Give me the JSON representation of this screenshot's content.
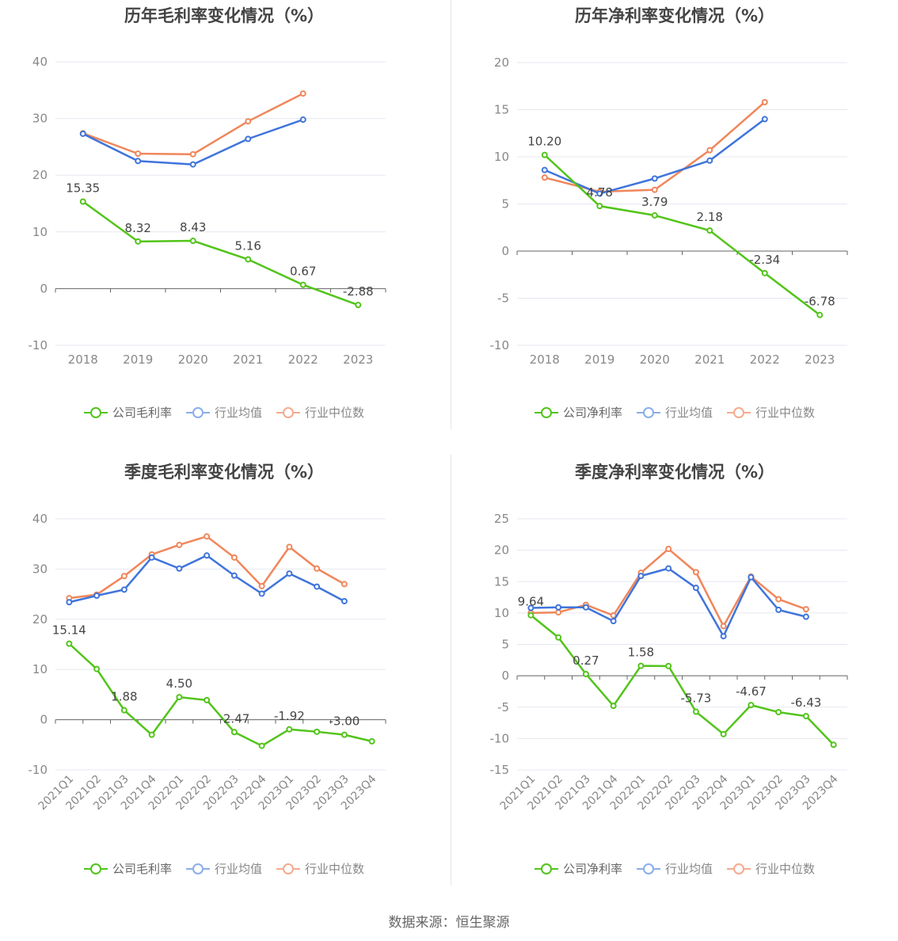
{
  "source_label": "数据来源：恒生聚源",
  "colors": {
    "company": "#52c41a",
    "avg": "#3f74db",
    "median": "#f0865a",
    "grid": "#e6e8f0",
    "axis": "#666666",
    "text": "#666666"
  },
  "chart_data": [
    {
      "id": "annual_gross",
      "type": "line",
      "title": "历年毛利率变化情况（%）",
      "categories": [
        "2018",
        "2019",
        "2020",
        "2021",
        "2022",
        "2023"
      ],
      "yticks": [
        -10,
        0,
        10,
        20,
        30,
        40
      ],
      "ylim": [
        -10,
        40
      ],
      "grid": true,
      "legend_position": "bottom",
      "series": [
        {
          "key": "company",
          "name": "公司毛利率",
          "values": [
            15.35,
            8.32,
            8.43,
            5.16,
            0.67,
            -2.88
          ],
          "labels": [
            "15.35",
            "8.32",
            "8.43",
            "5.16",
            "0.67",
            "-2.88"
          ]
        },
        {
          "key": "avg",
          "name": "行业均值",
          "values": [
            27.3,
            22.5,
            21.9,
            26.4,
            29.8,
            null
          ]
        },
        {
          "key": "median",
          "name": "行业中位数",
          "values": [
            27.4,
            23.8,
            23.7,
            29.5,
            34.4,
            null
          ]
        }
      ]
    },
    {
      "id": "annual_net",
      "type": "line",
      "title": "历年净利率变化情况（%）",
      "categories": [
        "2018",
        "2019",
        "2020",
        "2021",
        "2022",
        "2023"
      ],
      "yticks": [
        -10,
        -5,
        0,
        5,
        10,
        15,
        20
      ],
      "ylim": [
        -10,
        20
      ],
      "grid": true,
      "legend_position": "bottom",
      "series": [
        {
          "key": "company",
          "name": "公司净利率",
          "values": [
            10.2,
            4.78,
            3.79,
            2.18,
            -2.34,
            -6.78
          ],
          "labels": [
            "10.20",
            "4.78",
            "3.79",
            "2.18",
            "-2.34",
            "-6.78"
          ]
        },
        {
          "key": "avg",
          "name": "行业均值",
          "values": [
            8.6,
            6.1,
            7.7,
            9.6,
            14.0,
            null
          ]
        },
        {
          "key": "median",
          "name": "行业中位数",
          "values": [
            7.8,
            6.3,
            6.5,
            10.7,
            15.8,
            null
          ]
        }
      ]
    },
    {
      "id": "quarterly_gross",
      "type": "line",
      "title": "季度毛利率变化情况（%）",
      "categories": [
        "2021Q1",
        "2021Q2",
        "2021Q3",
        "2021Q4",
        "2022Q1",
        "2022Q2",
        "2022Q3",
        "2022Q4",
        "2023Q1",
        "2023Q2",
        "2023Q3",
        "2023Q4"
      ],
      "yticks": [
        -10,
        0,
        10,
        20,
        30,
        40
      ],
      "ylim": [
        -10,
        40
      ],
      "grid": true,
      "legend_position": "bottom",
      "series": [
        {
          "key": "company",
          "name": "公司毛利率",
          "values": [
            15.14,
            10.1,
            1.88,
            -3.0,
            4.5,
            3.9,
            -2.47,
            -5.2,
            -1.92,
            -2.4,
            -3.0,
            -4.3
          ],
          "labels": [
            "15.14",
            null,
            "1.88",
            null,
            "4.50",
            null,
            "-2.47",
            null,
            "-1.92",
            null,
            "-3.00",
            null
          ]
        },
        {
          "key": "avg",
          "name": "行业均值",
          "values": [
            23.4,
            24.7,
            25.9,
            32.3,
            30.1,
            32.7,
            28.7,
            25.1,
            29.1,
            26.5,
            23.6,
            null
          ]
        },
        {
          "key": "median",
          "name": "行业中位数",
          "values": [
            24.2,
            24.9,
            28.6,
            32.9,
            34.8,
            36.5,
            32.3,
            26.6,
            34.4,
            30.1,
            27.0,
            null
          ]
        }
      ]
    },
    {
      "id": "quarterly_net",
      "type": "line",
      "title": "季度净利率变化情况（%）",
      "categories": [
        "2021Q1",
        "2021Q2",
        "2021Q3",
        "2021Q4",
        "2022Q1",
        "2022Q2",
        "2022Q3",
        "2022Q4",
        "2023Q1",
        "2023Q2",
        "2023Q3",
        "2023Q4"
      ],
      "yticks": [
        -15,
        -10,
        -5,
        0,
        5,
        10,
        15,
        20,
        25
      ],
      "ylim": [
        -15,
        25
      ],
      "grid": true,
      "legend_position": "bottom",
      "series": [
        {
          "key": "company",
          "name": "公司净利率",
          "values": [
            9.64,
            6.1,
            0.27,
            -4.8,
            1.58,
            1.55,
            -5.73,
            -9.3,
            -4.67,
            -5.8,
            -6.43,
            -11.0
          ],
          "labels": [
            "9.64",
            null,
            "0.27",
            null,
            "1.58",
            null,
            "-5.73",
            null,
            "-4.67",
            null,
            "-6.43",
            null
          ]
        },
        {
          "key": "avg",
          "name": "行业均值",
          "values": [
            10.8,
            10.9,
            10.9,
            8.7,
            15.9,
            17.1,
            14.0,
            6.3,
            15.7,
            10.5,
            9.4,
            null
          ]
        },
        {
          "key": "median",
          "name": "行业中位数",
          "values": [
            10.0,
            10.1,
            11.3,
            9.6,
            16.4,
            20.2,
            16.5,
            7.9,
            15.8,
            12.2,
            10.6,
            null
          ]
        }
      ]
    }
  ]
}
